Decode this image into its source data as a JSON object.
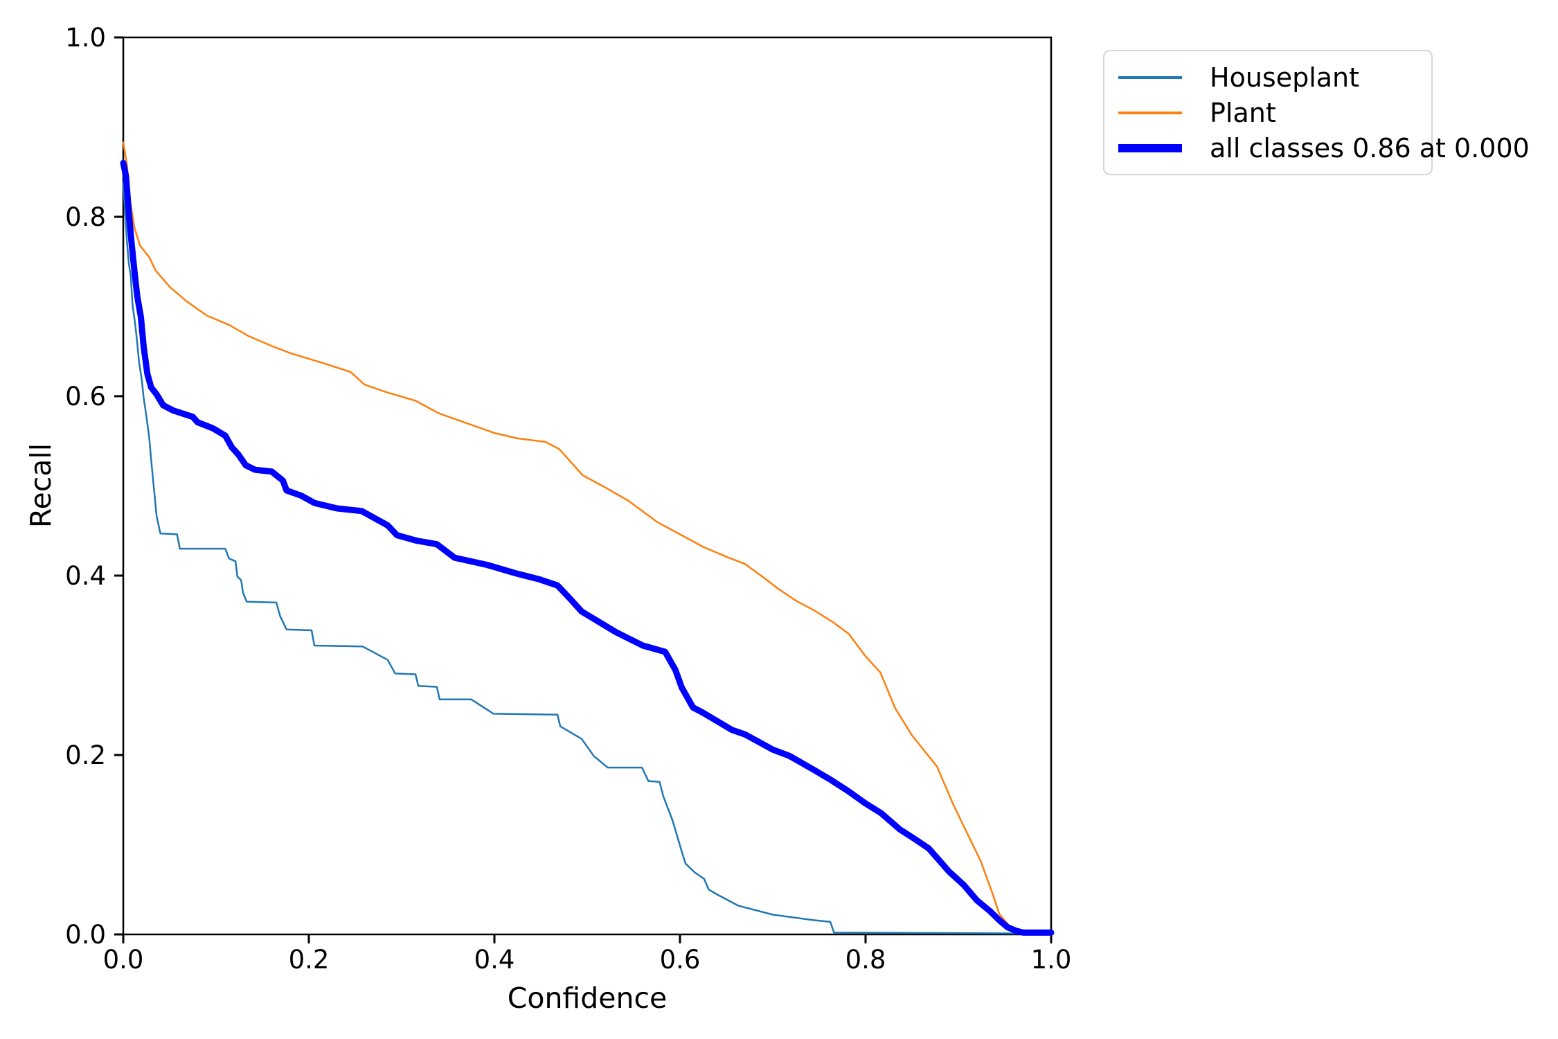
{
  "chart_data": {
    "type": "line",
    "title": "",
    "xlabel": "Confidence",
    "ylabel": "Recall",
    "xlim": [
      0.0,
      1.0
    ],
    "ylim": [
      0.0,
      1.0
    ],
    "xticks": [
      "0.0",
      "0.2",
      "0.4",
      "0.6",
      "0.8",
      "1.0"
    ],
    "yticks": [
      "0.0",
      "0.2",
      "0.4",
      "0.6",
      "0.8",
      "1.0"
    ],
    "grid": false,
    "legend_position": "upper-right-outside",
    "series": [
      {
        "name": "Houseplant",
        "color": "#1f77b4",
        "linewidth": 2.5,
        "points": [
          [
            0.0,
            0.838
          ],
          [
            0.002,
            0.805
          ],
          [
            0.004,
            0.772
          ],
          [
            0.006,
            0.748
          ],
          [
            0.008,
            0.735
          ],
          [
            0.01,
            0.702
          ],
          [
            0.013,
            0.679
          ],
          [
            0.015,
            0.66
          ],
          [
            0.017,
            0.638
          ],
          [
            0.02,
            0.618
          ],
          [
            0.022,
            0.598
          ],
          [
            0.025,
            0.577
          ],
          [
            0.028,
            0.554
          ],
          [
            0.03,
            0.53
          ],
          [
            0.032,
            0.508
          ],
          [
            0.036,
            0.466
          ],
          [
            0.04,
            0.447
          ],
          [
            0.058,
            0.446
          ],
          [
            0.061,
            0.43
          ],
          [
            0.11,
            0.43
          ],
          [
            0.114,
            0.419
          ],
          [
            0.121,
            0.416
          ],
          [
            0.123,
            0.399
          ],
          [
            0.127,
            0.395
          ],
          [
            0.129,
            0.381
          ],
          [
            0.133,
            0.371
          ],
          [
            0.165,
            0.37
          ],
          [
            0.169,
            0.355
          ],
          [
            0.176,
            0.34
          ],
          [
            0.203,
            0.339
          ],
          [
            0.206,
            0.322
          ],
          [
            0.258,
            0.321
          ],
          [
            0.285,
            0.306
          ],
          [
            0.293,
            0.291
          ],
          [
            0.315,
            0.29
          ],
          [
            0.318,
            0.277
          ],
          [
            0.338,
            0.276
          ],
          [
            0.341,
            0.262
          ],
          [
            0.375,
            0.262
          ],
          [
            0.399,
            0.246
          ],
          [
            0.468,
            0.245
          ],
          [
            0.471,
            0.232
          ],
          [
            0.494,
            0.218
          ],
          [
            0.507,
            0.199
          ],
          [
            0.522,
            0.186
          ],
          [
            0.559,
            0.186
          ],
          [
            0.566,
            0.171
          ],
          [
            0.578,
            0.17
          ],
          [
            0.582,
            0.154
          ],
          [
            0.592,
            0.127
          ],
          [
            0.602,
            0.092
          ],
          [
            0.606,
            0.079
          ],
          [
            0.616,
            0.069
          ],
          [
            0.626,
            0.062
          ],
          [
            0.631,
            0.05
          ],
          [
            0.641,
            0.044
          ],
          [
            0.663,
            0.032
          ],
          [
            0.7,
            0.022
          ],
          [
            0.743,
            0.016
          ],
          [
            0.762,
            0.014
          ],
          [
            0.766,
            0.002
          ],
          [
            1.0,
            0.001
          ]
        ]
      },
      {
        "name": "Plant",
        "color": "#ff7f0e",
        "linewidth": 2.5,
        "points": [
          [
            0.0,
            0.883
          ],
          [
            0.004,
            0.858
          ],
          [
            0.007,
            0.82
          ],
          [
            0.012,
            0.788
          ],
          [
            0.018,
            0.768
          ],
          [
            0.028,
            0.755
          ],
          [
            0.035,
            0.74
          ],
          [
            0.05,
            0.722
          ],
          [
            0.068,
            0.706
          ],
          [
            0.09,
            0.69
          ],
          [
            0.115,
            0.679
          ],
          [
            0.135,
            0.667
          ],
          [
            0.16,
            0.656
          ],
          [
            0.18,
            0.648
          ],
          [
            0.215,
            0.637
          ],
          [
            0.245,
            0.627
          ],
          [
            0.26,
            0.613
          ],
          [
            0.285,
            0.604
          ],
          [
            0.315,
            0.595
          ],
          [
            0.34,
            0.581
          ],
          [
            0.37,
            0.57
          ],
          [
            0.4,
            0.559
          ],
          [
            0.425,
            0.553
          ],
          [
            0.455,
            0.549
          ],
          [
            0.47,
            0.541
          ],
          [
            0.495,
            0.512
          ],
          [
            0.52,
            0.498
          ],
          [
            0.545,
            0.483
          ],
          [
            0.575,
            0.46
          ],
          [
            0.6,
            0.446
          ],
          [
            0.625,
            0.432
          ],
          [
            0.65,
            0.421
          ],
          [
            0.67,
            0.413
          ],
          [
            0.69,
            0.398
          ],
          [
            0.705,
            0.386
          ],
          [
            0.725,
            0.372
          ],
          [
            0.745,
            0.361
          ],
          [
            0.765,
            0.348
          ],
          [
            0.782,
            0.335
          ],
          [
            0.8,
            0.31
          ],
          [
            0.816,
            0.292
          ],
          [
            0.832,
            0.252
          ],
          [
            0.85,
            0.222
          ],
          [
            0.877,
            0.187
          ],
          [
            0.894,
            0.146
          ],
          [
            0.908,
            0.116
          ],
          [
            0.924,
            0.082
          ],
          [
            0.937,
            0.045
          ],
          [
            0.944,
            0.023
          ],
          [
            0.956,
            0.008
          ],
          [
            0.963,
            0.001
          ]
        ]
      },
      {
        "name": "all classes 0.86 at 0.000",
        "color": "#0000ff",
        "linewidth": 9,
        "points": [
          [
            0.0,
            0.86
          ],
          [
            0.003,
            0.845
          ],
          [
            0.006,
            0.805
          ],
          [
            0.009,
            0.77
          ],
          [
            0.012,
            0.74
          ],
          [
            0.015,
            0.712
          ],
          [
            0.019,
            0.688
          ],
          [
            0.022,
            0.655
          ],
          [
            0.026,
            0.625
          ],
          [
            0.03,
            0.61
          ],
          [
            0.036,
            0.602
          ],
          [
            0.043,
            0.59
          ],
          [
            0.054,
            0.584
          ],
          [
            0.075,
            0.577
          ],
          [
            0.08,
            0.571
          ],
          [
            0.097,
            0.564
          ],
          [
            0.11,
            0.556
          ],
          [
            0.117,
            0.543
          ],
          [
            0.124,
            0.535
          ],
          [
            0.132,
            0.523
          ],
          [
            0.142,
            0.518
          ],
          [
            0.16,
            0.516
          ],
          [
            0.172,
            0.506
          ],
          [
            0.176,
            0.495
          ],
          [
            0.192,
            0.489
          ],
          [
            0.206,
            0.481
          ],
          [
            0.23,
            0.475
          ],
          [
            0.257,
            0.472
          ],
          [
            0.285,
            0.456
          ],
          [
            0.295,
            0.445
          ],
          [
            0.316,
            0.439
          ],
          [
            0.338,
            0.435
          ],
          [
            0.357,
            0.42
          ],
          [
            0.392,
            0.412
          ],
          [
            0.425,
            0.402
          ],
          [
            0.448,
            0.396
          ],
          [
            0.468,
            0.389
          ],
          [
            0.48,
            0.376
          ],
          [
            0.494,
            0.36
          ],
          [
            0.531,
            0.337
          ],
          [
            0.56,
            0.322
          ],
          [
            0.584,
            0.315
          ],
          [
            0.595,
            0.295
          ],
          [
            0.602,
            0.275
          ],
          [
            0.614,
            0.253
          ],
          [
            0.625,
            0.247
          ],
          [
            0.656,
            0.228
          ],
          [
            0.67,
            0.223
          ],
          [
            0.7,
            0.206
          ],
          [
            0.718,
            0.199
          ],
          [
            0.745,
            0.183
          ],
          [
            0.763,
            0.172
          ],
          [
            0.781,
            0.16
          ],
          [
            0.8,
            0.146
          ],
          [
            0.817,
            0.135
          ],
          [
            0.837,
            0.117
          ],
          [
            0.852,
            0.107
          ],
          [
            0.868,
            0.096
          ],
          [
            0.89,
            0.07
          ],
          [
            0.906,
            0.055
          ],
          [
            0.92,
            0.038
          ],
          [
            0.934,
            0.026
          ],
          [
            0.945,
            0.015
          ],
          [
            0.953,
            0.008
          ],
          [
            0.962,
            0.004
          ],
          [
            0.97,
            0.002
          ],
          [
            1.0,
            0.002
          ]
        ]
      }
    ]
  },
  "legend": {
    "items": [
      {
        "label": "Houseplant"
      },
      {
        "label": "Plant"
      },
      {
        "label": "all classes 0.86 at 0.000"
      }
    ]
  }
}
